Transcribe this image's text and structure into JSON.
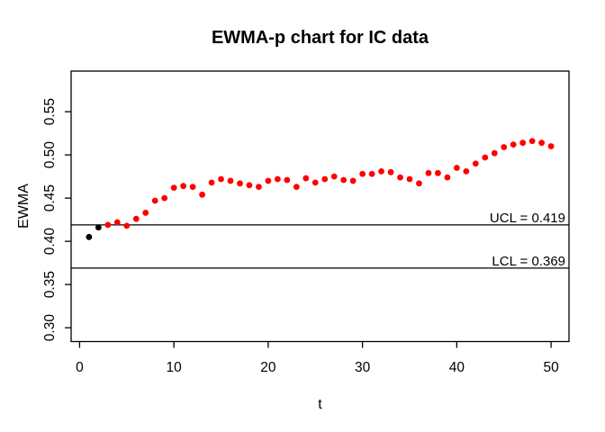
{
  "chart_data": {
    "type": "scatter",
    "title": "EWMA-p chart for IC data",
    "xlabel": "t",
    "ylabel": "EWMA",
    "x_ticks": [
      0,
      10,
      20,
      30,
      40,
      50
    ],
    "y_tick_values": [
      0.3,
      0.35,
      0.4,
      0.45,
      0.5,
      0.55
    ],
    "y_tick_labels": [
      "0.30",
      "0.35",
      "0.40",
      "0.45",
      "0.50",
      "0.55"
    ],
    "xlim": [
      -0.9,
      51.9
    ],
    "ylim": [
      0.284,
      0.597
    ],
    "grid": false,
    "legend": "none",
    "axis_color": "#000000",
    "background_color": "#ffffff",
    "control_limits": {
      "ucl_value": 0.419,
      "ucl_label": "UCL = 0.419",
      "lcl_value": 0.369,
      "lcl_label": "LCL = 0.369",
      "line_color": "#000000"
    },
    "point_style": {
      "shape": "filled-circle",
      "default_color": "#ff0000",
      "initial_color": "#000000",
      "initial_point_count": 2,
      "radius_px": 3.4
    },
    "t": [
      1,
      2,
      3,
      4,
      5,
      6,
      7,
      8,
      9,
      10,
      11,
      12,
      13,
      14,
      15,
      16,
      17,
      18,
      19,
      20,
      21,
      22,
      23,
      24,
      25,
      26,
      27,
      28,
      29,
      30,
      31,
      32,
      33,
      34,
      35,
      36,
      37,
      38,
      39,
      40,
      41,
      42,
      43,
      44,
      45,
      46,
      47,
      48,
      49,
      50
    ],
    "ewma": [
      0.405,
      0.416,
      0.419,
      0.422,
      0.418,
      0.426,
      0.433,
      0.447,
      0.45,
      0.462,
      0.464,
      0.463,
      0.454,
      0.468,
      0.472,
      0.47,
      0.467,
      0.465,
      0.463,
      0.47,
      0.472,
      0.471,
      0.463,
      0.473,
      0.468,
      0.472,
      0.475,
      0.471,
      0.47,
      0.478,
      0.478,
      0.481,
      0.48,
      0.474,
      0.472,
      0.467,
      0.479,
      0.479,
      0.474,
      0.485,
      0.481,
      0.49,
      0.497,
      0.502,
      0.509,
      0.512,
      0.514,
      0.516,
      0.514,
      0.51
    ]
  }
}
